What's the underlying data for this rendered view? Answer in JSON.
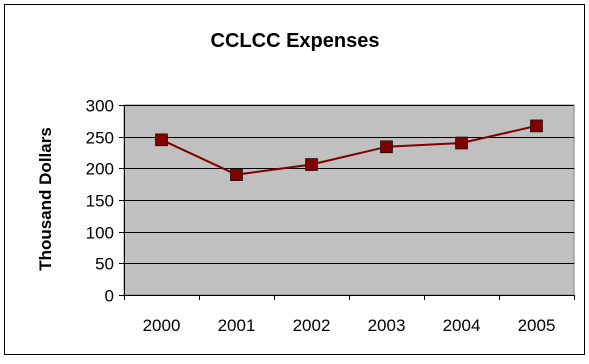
{
  "chart_data": {
    "type": "line",
    "title": "CCLCC Expenses",
    "xlabel": "",
    "ylabel": "Thousand Dollars",
    "categories": [
      "2000",
      "2001",
      "2002",
      "2003",
      "2004",
      "2005"
    ],
    "series": [
      {
        "values": [
          245,
          190,
          206,
          234,
          240,
          267
        ]
      }
    ],
    "ylim": [
      0,
      300
    ],
    "yticks": [
      0,
      50,
      100,
      150,
      200,
      250,
      300
    ],
    "grid": true,
    "legend": "none",
    "colors": {
      "series": "#800000",
      "plot_background": "#c0c0c0",
      "grid": "#000000"
    }
  }
}
